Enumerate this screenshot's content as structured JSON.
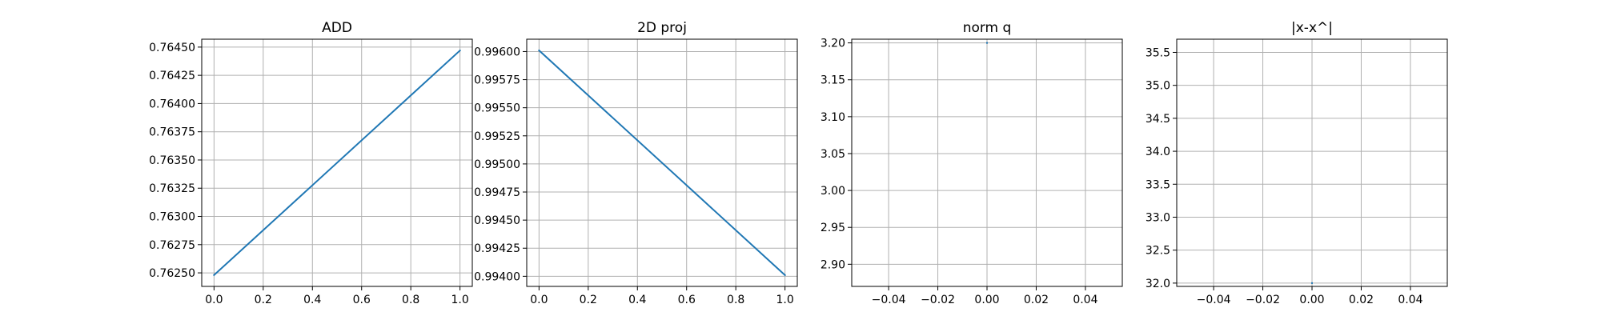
{
  "chart_data": [
    {
      "type": "line",
      "title": "ADD",
      "xlabel": "",
      "ylabel": "",
      "grid": true,
      "xlim": [
        -0.05,
        1.05
      ],
      "ylim": [
        0.76238,
        0.76457
      ],
      "xticks": [
        0.0,
        0.2,
        0.4,
        0.6,
        0.8,
        1.0
      ],
      "xtick_labels": [
        "0.0",
        "0.2",
        "0.4",
        "0.6",
        "0.8",
        "1.0"
      ],
      "yticks": [
        0.7625,
        0.76275,
        0.763,
        0.76325,
        0.7635,
        0.76375,
        0.764,
        0.76425,
        0.7645
      ],
      "ytick_labels": [
        "0.76250",
        "0.76275",
        "0.76300",
        "0.76325",
        "0.76350",
        "0.76375",
        "0.76400",
        "0.76425",
        "0.76450"
      ],
      "series": [
        {
          "x": [
            0,
            1
          ],
          "y": [
            0.76248,
            0.76447
          ],
          "color": "#1f77b4"
        }
      ]
    },
    {
      "type": "line",
      "title": "2D proj",
      "xlabel": "",
      "ylabel": "",
      "grid": true,
      "xlim": [
        -0.05,
        1.05
      ],
      "ylim": [
        0.99391,
        0.99611
      ],
      "xticks": [
        0.0,
        0.2,
        0.4,
        0.6,
        0.8,
        1.0
      ],
      "xtick_labels": [
        "0.0",
        "0.2",
        "0.4",
        "0.6",
        "0.8",
        "1.0"
      ],
      "yticks": [
        0.994,
        0.99425,
        0.9945,
        0.99475,
        0.995,
        0.99525,
        0.9955,
        0.99575,
        0.996
      ],
      "ytick_labels": [
        "0.99400",
        "0.99425",
        "0.99450",
        "0.99475",
        "0.99500",
        "0.99525",
        "0.99550",
        "0.99575",
        "0.99600"
      ],
      "series": [
        {
          "x": [
            0,
            1
          ],
          "y": [
            0.99601,
            0.99401
          ],
          "color": "#1f77b4"
        }
      ]
    },
    {
      "type": "line",
      "title": "norm q",
      "xlabel": "",
      "ylabel": "",
      "grid": true,
      "xlim": [
        -0.055,
        0.055
      ],
      "ylim": [
        2.87,
        3.205
      ],
      "xticks": [
        -0.04,
        -0.02,
        0.0,
        0.02,
        0.04
      ],
      "xtick_labels": [
        "−0.04",
        "−0.02",
        "0.00",
        "0.02",
        "0.04"
      ],
      "yticks": [
        2.9,
        2.95,
        3.0,
        3.05,
        3.1,
        3.15,
        3.2
      ],
      "ytick_labels": [
        "2.90",
        "2.95",
        "3.00",
        "3.05",
        "3.10",
        "3.15",
        "3.20"
      ],
      "series": [
        {
          "x": [
            0
          ],
          "y": [
            3.2
          ],
          "color": "#1f77b4"
        }
      ]
    },
    {
      "type": "line",
      "title": "|x-x^|",
      "xlabel": "",
      "ylabel": "",
      "grid": true,
      "xlim": [
        -0.055,
        0.055
      ],
      "ylim": [
        31.95,
        35.7
      ],
      "xticks": [
        -0.04,
        -0.02,
        0.0,
        0.02,
        0.04
      ],
      "xtick_labels": [
        "−0.04",
        "−0.02",
        "0.00",
        "0.02",
        "0.04"
      ],
      "yticks": [
        32.0,
        32.5,
        33.0,
        33.5,
        34.0,
        34.5,
        35.0,
        35.5
      ],
      "ytick_labels": [
        "32.0",
        "32.5",
        "33.0",
        "33.5",
        "34.0",
        "34.5",
        "35.0",
        "35.5"
      ],
      "series": [
        {
          "x": [
            0
          ],
          "y": [
            32.0
          ],
          "color": "#1f77b4"
        }
      ]
    }
  ]
}
